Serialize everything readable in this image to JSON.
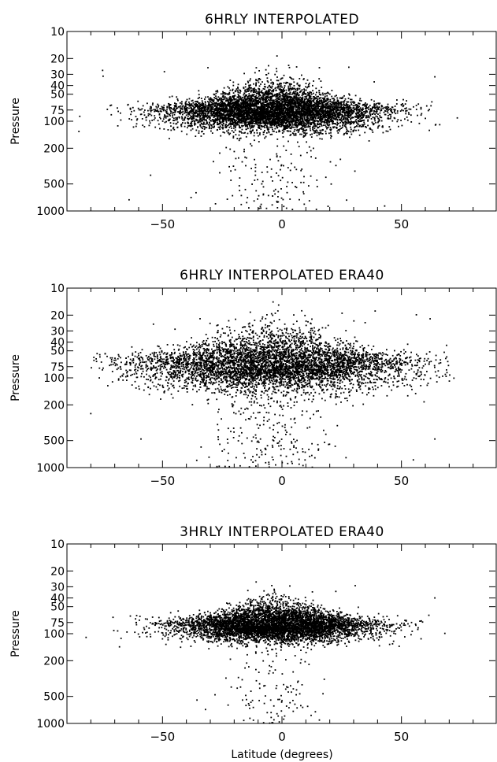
{
  "chart_data": [
    {
      "type": "scatter",
      "title": "6HRLY INTERPOLATED",
      "xlabel": "",
      "ylabel": "Pressure",
      "xlim": [
        -90,
        90
      ],
      "ylim": [
        1000,
        10
      ],
      "yscale": "log",
      "xticks": [
        -50,
        0,
        50
      ],
      "yticks": [
        10,
        20,
        30,
        40,
        50,
        75,
        100,
        200,
        500,
        1000
      ],
      "grid": false,
      "cloud": {
        "lat_center": -3,
        "lat_spread": 22,
        "lat_range": [
          -85,
          75
        ],
        "core_pressure": 78,
        "bottom_pressure": 100,
        "top_pressure": 40,
        "n_core": 6000,
        "n_plume": 170,
        "plume_lat_spread": 12,
        "n_outliers_high": 12
      },
      "notable_points": [
        {
          "lat": 28,
          "p": 25
        },
        {
          "lat": 64,
          "p": 32
        },
        {
          "lat": -64,
          "p": 750
        },
        {
          "lat": -55,
          "p": 400
        },
        {
          "lat": 43,
          "p": 880
        },
        {
          "lat": -85,
          "p": 130
        }
      ]
    },
    {
      "type": "scatter",
      "title": "6HRLY INTERPOLATED ERA40",
      "xlabel": "",
      "ylabel": "Pressure",
      "xlim": [
        -90,
        90
      ],
      "ylim": [
        1000,
        10
      ],
      "yscale": "log",
      "xticks": [
        -50,
        0,
        50
      ],
      "yticks": [
        10,
        20,
        30,
        40,
        50,
        75,
        100,
        200,
        500,
        1000
      ],
      "grid": false,
      "cloud": {
        "lat_center": -4,
        "lat_spread": 28,
        "lat_range": [
          -80,
          72
        ],
        "core_pressure": 72,
        "bottom_pressure": 105,
        "top_pressure": 30,
        "n_core": 5200,
        "n_plume": 260,
        "plume_lat_spread": 13,
        "n_outliers_high": 16
      },
      "notable_points": [
        {
          "lat": 39,
          "p": 18
        },
        {
          "lat": 62,
          "p": 22
        },
        {
          "lat": -80,
          "p": 250
        },
        {
          "lat": 64,
          "p": 480
        },
        {
          "lat": -59,
          "p": 480
        },
        {
          "lat": 55,
          "p": 820
        }
      ]
    },
    {
      "type": "scatter",
      "title": "3HRLY INTERPOLATED ERA40",
      "xlabel": "Latitude (degrees)",
      "ylabel": "Pressure",
      "xlim": [
        -90,
        90
      ],
      "ylim": [
        1000,
        10
      ],
      "yscale": "log",
      "xticks": [
        -50,
        0,
        50
      ],
      "yticks": [
        10,
        20,
        30,
        40,
        50,
        75,
        100,
        200,
        500,
        1000
      ],
      "grid": false,
      "cloud": {
        "lat_center": -3,
        "lat_spread": 20,
        "lat_range": [
          -82,
          70
        ],
        "core_pressure": 82,
        "bottom_pressure": 100,
        "top_pressure": 45,
        "n_core": 5600,
        "n_plume": 120,
        "plume_lat_spread": 10,
        "n_outliers_high": 6
      },
      "notable_points": [
        {
          "lat": 64,
          "p": 40
        },
        {
          "lat": -32,
          "p": 700
        },
        {
          "lat": -82,
          "p": 110
        },
        {
          "lat": -68,
          "p": 140
        }
      ]
    }
  ]
}
